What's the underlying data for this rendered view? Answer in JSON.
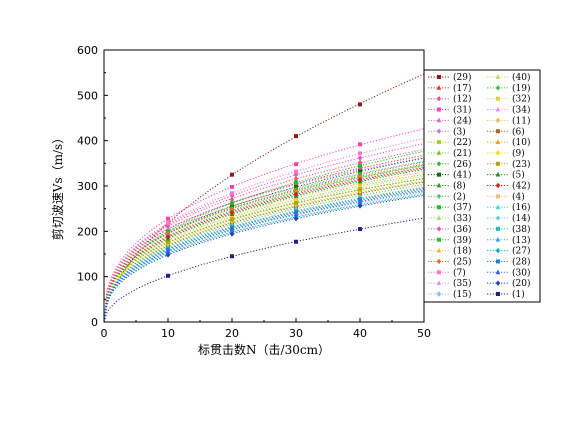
{
  "chart_data": {
    "type": "scatter",
    "title": "",
    "xlabel": "标贯击数N（击/30cm）",
    "ylabel": "剪切波速Vs（m/s）",
    "xlim": [
      0,
      50
    ],
    "ylim": [
      0,
      600
    ],
    "xticks": [
      "0",
      "10",
      "20",
      "30",
      "40",
      "50"
    ],
    "yticks": [
      "0",
      "100",
      "200",
      "300",
      "400",
      "500",
      "600"
    ],
    "fit": "power",
    "legend_placement": "right",
    "series": [
      {
        "name": "(29)",
        "color": "#8b1a1a",
        "marker": "square",
        "x": [
          10,
          20,
          30,
          40
        ],
        "y": [
          218,
          325,
          410,
          480
        ]
      },
      {
        "name": "(17)",
        "color": "#e03030",
        "marker": "triangle",
        "x": [
          10,
          20,
          30,
          40
        ],
        "y": [
          205,
          262,
          305,
          340
        ]
      },
      {
        "name": "(12)",
        "color": "#ff4f8a",
        "marker": "diamond",
        "x": [
          10,
          20,
          30,
          40
        ],
        "y": [
          212,
          270,
          316,
          352
        ]
      },
      {
        "name": "(31)",
        "color": "#ff40b0",
        "marker": "square",
        "x": [
          10,
          20,
          30,
          40
        ],
        "y": [
          228,
          298,
          348,
          392
        ]
      },
      {
        "name": "(24)",
        "color": "#e060e0",
        "marker": "triangle",
        "x": [
          10,
          20,
          30,
          40
        ],
        "y": [
          206,
          262,
          302,
          336
        ]
      },
      {
        "name": "(3)",
        "color": "#c080e0",
        "marker": "diamond",
        "x": [
          10,
          20,
          30,
          40
        ],
        "y": [
          200,
          255,
          295,
          328
        ]
      },
      {
        "name": "(22)",
        "color": "#a0d020",
        "marker": "square",
        "x": [
          10,
          20,
          30,
          40
        ],
        "y": [
          195,
          248,
          288,
          320
        ]
      },
      {
        "name": "(21)",
        "color": "#80c040",
        "marker": "triangle",
        "x": [
          10,
          20,
          30,
          40
        ],
        "y": [
          186,
          240,
          280,
          312
        ]
      },
      {
        "name": "(26)",
        "color": "#40b040",
        "marker": "diamond",
        "x": [
          10,
          20,
          30,
          40
        ],
        "y": [
          190,
          246,
          286,
          318
        ]
      },
      {
        "name": "(41)",
        "color": "#007000",
        "marker": "square",
        "x": [
          10,
          20,
          30,
          40
        ],
        "y": [
          196,
          255,
          298,
          332
        ]
      },
      {
        "name": "(8)",
        "color": "#20a020",
        "marker": "triangle",
        "x": [
          10,
          20,
          30,
          40
        ],
        "y": [
          180,
          232,
          270,
          300
        ]
      },
      {
        "name": "(2)",
        "color": "#60c060",
        "marker": "diamond",
        "x": [
          10,
          20,
          30,
          40
        ],
        "y": [
          175,
          226,
          262,
          292
        ]
      },
      {
        "name": "(37)",
        "color": "#20c020",
        "marker": "square",
        "x": [
          10,
          20,
          30,
          40
        ],
        "y": [
          200,
          262,
          308,
          345
        ]
      },
      {
        "name": "(33)",
        "color": "#a0e080",
        "marker": "triangle",
        "x": [
          10,
          20,
          30,
          40
        ],
        "y": [
          176,
          228,
          266,
          296
        ]
      },
      {
        "name": "(36)",
        "color": "#e050c0",
        "marker": "diamond",
        "x": [
          10,
          20,
          30,
          40
        ],
        "y": [
          215,
          278,
          325,
          362
        ]
      },
      {
        "name": "(39)",
        "color": "#30c030",
        "marker": "square",
        "x": [
          10,
          20,
          30,
          40
        ],
        "y": [
          195,
          250,
          292,
          326
        ]
      },
      {
        "name": "(18)",
        "color": "#ffb040",
        "marker": "triangle",
        "x": [
          10,
          20,
          30,
          40
        ],
        "y": [
          184,
          236,
          274,
          306
        ]
      },
      {
        "name": "(25)",
        "color": "#e07020",
        "marker": "diamond",
        "x": [
          10,
          20,
          30,
          40
        ],
        "y": [
          196,
          250,
          290,
          322
        ]
      },
      {
        "name": "(7)",
        "color": "#ff7ac0",
        "marker": "square",
        "x": [
          10,
          20,
          30,
          40
        ],
        "y": [
          218,
          284,
          332,
          372
        ]
      },
      {
        "name": "(35)",
        "color": "#d0a0e0",
        "marker": "triangle",
        "x": [
          10,
          20,
          30,
          40
        ],
        "y": [
          170,
          220,
          256,
          285
        ]
      },
      {
        "name": "(15)",
        "color": "#80c0ff",
        "marker": "diamond",
        "x": [
          10,
          20,
          30,
          40
        ],
        "y": [
          150,
          198,
          232,
          260
        ]
      },
      {
        "name": "(40)",
        "color": "#b0e060",
        "marker": "triangle",
        "x": [
          10,
          20,
          30,
          40
        ],
        "y": [
          170,
          220,
          256,
          286
        ]
      },
      {
        "name": "(19)",
        "color": "#40c040",
        "marker": "diamond",
        "x": [
          10,
          20,
          30,
          40
        ],
        "y": [
          175,
          226,
          262,
          292
        ]
      },
      {
        "name": "(32)",
        "color": "#e0d040",
        "marker": "square",
        "x": [
          10,
          20,
          30,
          40
        ],
        "y": [
          180,
          232,
          270,
          300
        ]
      },
      {
        "name": "(34)",
        "color": "#f090f0",
        "marker": "triangle",
        "x": [
          10,
          20,
          30,
          40
        ],
        "y": [
          190,
          244,
          284,
          316
        ]
      },
      {
        "name": "(11)",
        "color": "#e0c060",
        "marker": "diamond",
        "x": [
          10,
          20,
          30,
          40
        ],
        "y": [
          165,
          214,
          250,
          280
        ]
      },
      {
        "name": "(6)",
        "color": "#b06020",
        "marker": "square",
        "x": [
          10,
          20,
          30,
          40
        ],
        "y": [
          168,
          218,
          254,
          284
        ]
      },
      {
        "name": "(10)",
        "color": "#f0a000",
        "marker": "triangle",
        "x": [
          10,
          20,
          30,
          40
        ],
        "y": [
          162,
          210,
          245,
          274
        ]
      },
      {
        "name": "(9)",
        "color": "#f0e020",
        "marker": "diamond",
        "x": [
          10,
          20,
          30,
          40
        ],
        "y": [
          172,
          222,
          258,
          288
        ]
      },
      {
        "name": "(23)",
        "color": "#c0a000",
        "marker": "square",
        "x": [
          10,
          20,
          30,
          40
        ],
        "y": [
          176,
          226,
          262,
          292
        ]
      },
      {
        "name": "(5)",
        "color": "#209020",
        "marker": "triangle",
        "x": [
          10,
          20,
          30,
          40
        ],
        "y": [
          184,
          238,
          278,
          310
        ]
      },
      {
        "name": "(42)",
        "color": "#d02020",
        "marker": "diamond",
        "x": [
          10,
          20,
          30,
          40
        ],
        "y": [
          188,
          242,
          282,
          314
        ]
      },
      {
        "name": "(4)",
        "color": "#f0c080",
        "marker": "square",
        "x": [
          10,
          20,
          30,
          40
        ],
        "y": [
          160,
          208,
          242,
          270
        ]
      },
      {
        "name": "(16)",
        "color": "#40e0d0",
        "marker": "triangle",
        "x": [
          10,
          20,
          30,
          40
        ],
        "y": [
          165,
          214,
          250,
          278
        ]
      },
      {
        "name": "(14)",
        "color": "#60d0e0",
        "marker": "diamond",
        "x": [
          10,
          20,
          30,
          40
        ],
        "y": [
          158,
          206,
          240,
          268
        ]
      },
      {
        "name": "(38)",
        "color": "#20c0c0",
        "marker": "square",
        "x": [
          10,
          20,
          30,
          40
        ],
        "y": [
          162,
          210,
          245,
          272
        ]
      },
      {
        "name": "(13)",
        "color": "#40a0e0",
        "marker": "triangle",
        "x": [
          10,
          20,
          30,
          40
        ],
        "y": [
          155,
          202,
          236,
          264
        ]
      },
      {
        "name": "(27)",
        "color": "#00b0b0",
        "marker": "diamond",
        "x": [
          10,
          20,
          30,
          40
        ],
        "y": [
          152,
          198,
          232,
          258
        ]
      },
      {
        "name": "(28)",
        "color": "#2080e0",
        "marker": "square",
        "x": [
          10,
          20,
          30,
          40
        ],
        "y": [
          160,
          208,
          242,
          270
        ]
      },
      {
        "name": "(30)",
        "color": "#4060e0",
        "marker": "triangle",
        "x": [
          10,
          20,
          30,
          40
        ],
        "y": [
          156,
          204,
          238,
          266
        ]
      },
      {
        "name": "(20)",
        "color": "#2040c0",
        "marker": "diamond",
        "x": [
          10,
          20,
          30,
          40
        ],
        "y": [
          148,
          194,
          228,
          256
        ]
      },
      {
        "name": "(1)",
        "color": "#1a237e",
        "marker": "square",
        "x": [
          10,
          20,
          30,
          40
        ],
        "y": [
          102,
          145,
          177,
          205
        ]
      }
    ]
  }
}
